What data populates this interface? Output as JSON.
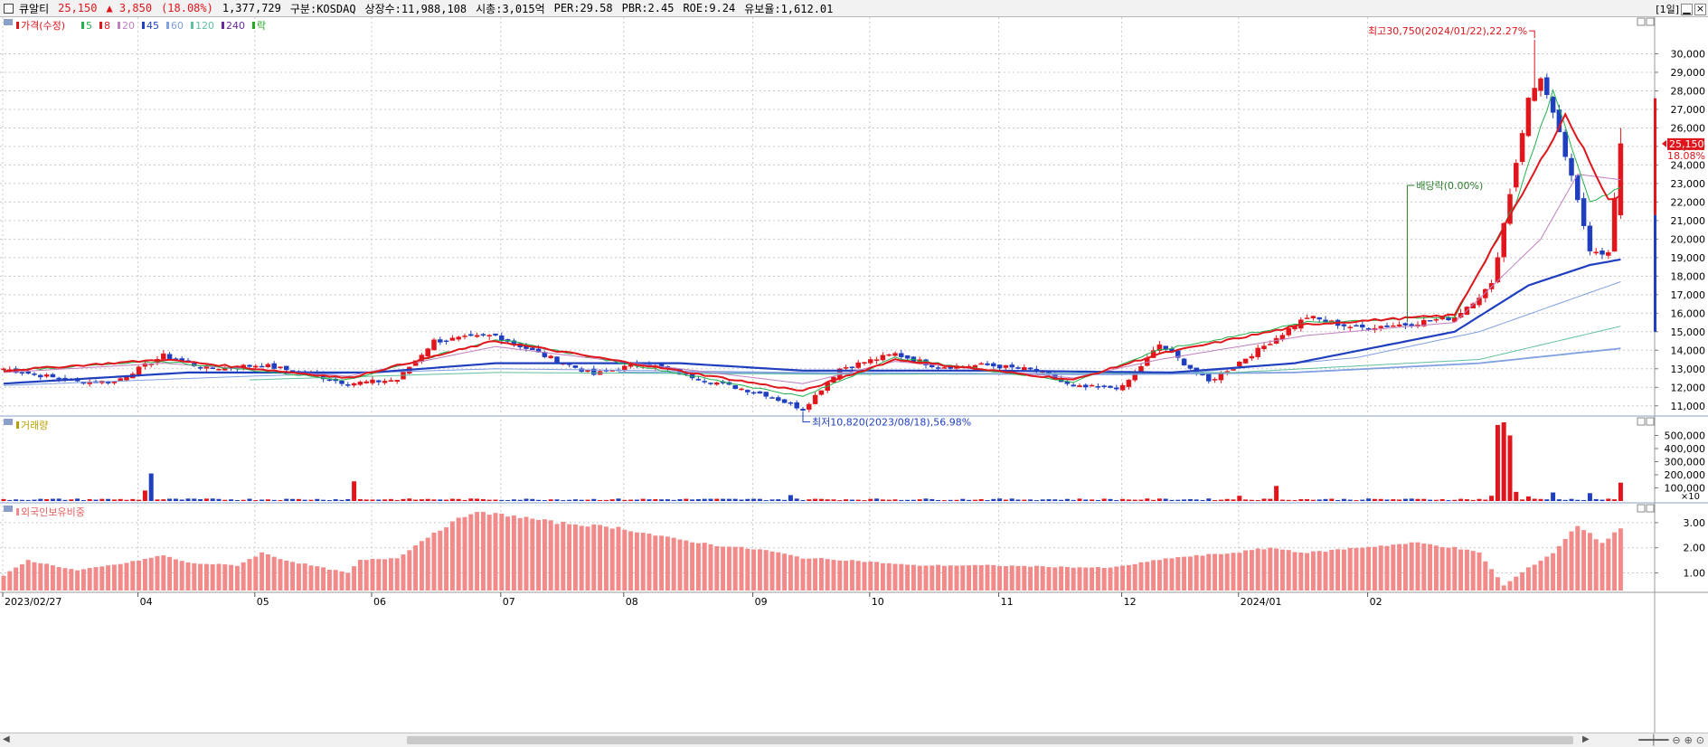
{
  "header": {
    "name": "큐알티",
    "price": "25,150",
    "change": "▲ 3,850",
    "change_pct": "(18.08%)",
    "volume": "1,377,729",
    "market": "구분:KOSDAQ",
    "shares": "상장수:11,988,108",
    "mcap": "시총:3,015억",
    "per": "PER:29.58",
    "pbr": "PBR:2.45",
    "roe": "ROE:9.24",
    "float": "유보율:1,612.01",
    "period": "[1일]"
  },
  "legend": {
    "price_label": "가격(수정)",
    "ma": [
      {
        "label": "5",
        "color": "#22b14c"
      },
      {
        "label": "8",
        "color": "#e0161c"
      },
      {
        "label": "20",
        "color": "#c080c0"
      },
      {
        "label": "45",
        "color": "#1f3fbf"
      },
      {
        "label": "60",
        "color": "#80a0e0"
      },
      {
        "label": "120",
        "color": "#5fbf9f"
      },
      {
        "label": "240",
        "color": "#6a2a9a"
      }
    ],
    "ex_label": "락"
  },
  "colors": {
    "up": "#e0161c",
    "down": "#1f3fbf",
    "foreign": "#f28a8a",
    "grid": "#c8c8c8"
  },
  "annotations": {
    "high": "최고30,750(2024/01/22),22.27%",
    "low": "최저10,820(2023/08/18),56.98%",
    "dividend": "배당락(0.00%)",
    "current_price": "25,150",
    "current_pct": "18.08%"
  },
  "volume_panel": {
    "title": "거래량",
    "unit": "×10"
  },
  "foreign_panel": {
    "title": "외국인보유비중"
  },
  "chart_data": [
    {
      "type": "candlestick",
      "title": "가격(수정)",
      "ylim": [
        10500,
        31000
      ],
      "yticks": [
        11000,
        12000,
        13000,
        14000,
        15000,
        16000,
        17000,
        18000,
        19000,
        20000,
        21000,
        22000,
        23000,
        24000,
        25000,
        26000,
        27000,
        28000,
        29000,
        30000
      ],
      "x_labels": [
        "2023/02/27",
        "04",
        "05",
        "06",
        "07",
        "08",
        "09",
        "10",
        "11",
        "12",
        "2024/01",
        "02"
      ],
      "close_anchors": [
        [
          0,
          13000
        ],
        [
          12,
          12300
        ],
        [
          18,
          12300
        ],
        [
          26,
          13700
        ],
        [
          33,
          13000
        ],
        [
          42,
          13200
        ],
        [
          50,
          12700
        ],
        [
          56,
          12200
        ],
        [
          64,
          12400
        ],
        [
          70,
          14500
        ],
        [
          80,
          14800
        ],
        [
          88,
          13700
        ],
        [
          96,
          12700
        ],
        [
          104,
          13300
        ],
        [
          114,
          12400
        ],
        [
          124,
          11600
        ],
        [
          130,
          10820
        ],
        [
          136,
          13000
        ],
        [
          145,
          13800
        ],
        [
          152,
          13100
        ],
        [
          160,
          13200
        ],
        [
          168,
          12900
        ],
        [
          174,
          12000
        ],
        [
          182,
          12000
        ],
        [
          188,
          14300
        ],
        [
          196,
          12300
        ],
        [
          204,
          14000
        ],
        [
          212,
          15800
        ],
        [
          220,
          15200
        ],
        [
          228,
          15400
        ],
        [
          236,
          15800
        ],
        [
          242,
          17500
        ],
        [
          248,
          27500
        ],
        [
          250,
          28800
        ],
        [
          254,
          24500
        ],
        [
          258,
          19500
        ],
        [
          261,
          19200
        ],
        [
          263,
          25150
        ]
      ],
      "ma5_anchors": [
        [
          0,
          12900
        ],
        [
          26,
          13400
        ],
        [
          56,
          12400
        ],
        [
          80,
          14600
        ],
        [
          130,
          11500
        ],
        [
          145,
          13600
        ],
        [
          174,
          12300
        ],
        [
          188,
          14000
        ],
        [
          212,
          15500
        ],
        [
          236,
          15800
        ],
        [
          246,
          22000
        ],
        [
          252,
          28000
        ],
        [
          258,
          22000
        ],
        [
          263,
          22800
        ]
      ],
      "ma8_anchors": [
        [
          0,
          12900
        ],
        [
          26,
          13500
        ],
        [
          56,
          12500
        ],
        [
          80,
          14500
        ],
        [
          130,
          11800
        ],
        [
          145,
          13500
        ],
        [
          174,
          12400
        ],
        [
          188,
          13800
        ],
        [
          212,
          15400
        ],
        [
          236,
          15900
        ],
        [
          248,
          23000
        ],
        [
          254,
          26700
        ],
        [
          258,
          24200
        ],
        [
          261,
          22100
        ],
        [
          263,
          22300
        ]
      ],
      "ma20_anchors": [
        [
          0,
          12800
        ],
        [
          26,
          13300
        ],
        [
          56,
          12600
        ],
        [
          80,
          14200
        ],
        [
          130,
          12200
        ],
        [
          145,
          13400
        ],
        [
          174,
          12500
        ],
        [
          188,
          13500
        ],
        [
          212,
          14800
        ],
        [
          236,
          15500
        ],
        [
          250,
          20000
        ],
        [
          256,
          23500
        ],
        [
          263,
          23200
        ]
      ],
      "ma45_anchors": [
        [
          0,
          12200
        ],
        [
          30,
          12800
        ],
        [
          60,
          12800
        ],
        [
          80,
          13300
        ],
        [
          110,
          13300
        ],
        [
          130,
          12900
        ],
        [
          160,
          12900
        ],
        [
          190,
          12800
        ],
        [
          210,
          13300
        ],
        [
          236,
          15000
        ],
        [
          248,
          17500
        ],
        [
          258,
          18600
        ],
        [
          263,
          18900
        ]
      ],
      "ma60_anchors": [
        [
          0,
          12100
        ],
        [
          40,
          12600
        ],
        [
          80,
          13000
        ],
        [
          130,
          12800
        ],
        [
          190,
          12700
        ],
        [
          220,
          13600
        ],
        [
          240,
          15000
        ],
        [
          263,
          17700
        ]
      ],
      "ma120_anchors": [
        [
          40,
          12400
        ],
        [
          80,
          12800
        ],
        [
          140,
          12700
        ],
        [
          200,
          12800
        ],
        [
          240,
          13500
        ],
        [
          263,
          15300
        ]
      ],
      "ma240_anchors": [
        [
          100,
          12800
        ],
        [
          180,
          12700
        ],
        [
          210,
          12800
        ],
        [
          240,
          13300
        ],
        [
          263,
          14100
        ]
      ],
      "high": 30750,
      "low": 10820,
      "last_close": 25150
    },
    {
      "type": "bar",
      "title": "거래량",
      "unit": "×10",
      "ylim": [
        0,
        600000
      ],
      "yticks": [
        100000,
        200000,
        300000,
        400000,
        500000
      ],
      "spikes": [
        [
          23,
          80000
        ],
        [
          24,
          210000
        ],
        [
          57,
          150000
        ],
        [
          128,
          45000
        ],
        [
          201,
          40000
        ],
        [
          207,
          115000
        ],
        [
          242,
          40000
        ],
        [
          243,
          580000
        ],
        [
          244,
          600000
        ],
        [
          245,
          500000
        ],
        [
          246,
          70000
        ],
        [
          248,
          35000
        ],
        [
          252,
          65000
        ],
        [
          258,
          60000
        ],
        [
          263,
          140000
        ]
      ],
      "base_volume": 16000
    },
    {
      "type": "bar",
      "title": "외국인보유비중",
      "ylim": [
        0.3,
        3.5
      ],
      "yticks": [
        1.0,
        2.0,
        3.0
      ],
      "anchors": [
        [
          0,
          0.9
        ],
        [
          4,
          1.5
        ],
        [
          8,
          1.3
        ],
        [
          12,
          1.1
        ],
        [
          20,
          1.4
        ],
        [
          26,
          1.7
        ],
        [
          30,
          1.4
        ],
        [
          38,
          1.3
        ],
        [
          42,
          1.8
        ],
        [
          46,
          1.5
        ],
        [
          56,
          1.0
        ],
        [
          58,
          1.5
        ],
        [
          64,
          1.6
        ],
        [
          70,
          2.6
        ],
        [
          76,
          3.4
        ],
        [
          82,
          3.3
        ],
        [
          90,
          3.0
        ],
        [
          100,
          2.8
        ],
        [
          108,
          2.4
        ],
        [
          116,
          2.1
        ],
        [
          124,
          1.9
        ],
        [
          130,
          1.6
        ],
        [
          138,
          1.5
        ],
        [
          148,
          1.3
        ],
        [
          160,
          1.3
        ],
        [
          180,
          1.2
        ],
        [
          190,
          1.6
        ],
        [
          200,
          1.8
        ],
        [
          206,
          2.0
        ],
        [
          212,
          1.8
        ],
        [
          220,
          2.0
        ],
        [
          230,
          2.2
        ],
        [
          236,
          2.0
        ],
        [
          240,
          1.8
        ],
        [
          244,
          0.5
        ],
        [
          248,
          1.2
        ],
        [
          252,
          1.8
        ],
        [
          256,
          2.9
        ],
        [
          260,
          2.2
        ],
        [
          263,
          2.8
        ]
      ]
    }
  ]
}
